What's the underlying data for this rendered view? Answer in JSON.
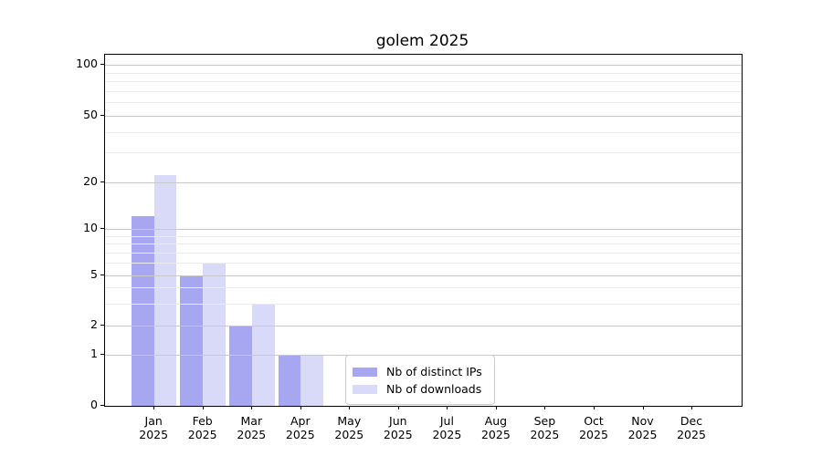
{
  "chart_data": {
    "type": "bar",
    "title": "golem 2025",
    "categories": [
      "Jan",
      "Feb",
      "Mar",
      "Apr",
      "May",
      "Jun",
      "Jul",
      "Aug",
      "Sep",
      "Oct",
      "Nov",
      "Dec"
    ],
    "x_year": "2025",
    "series": [
      {
        "name": "Nb of distinct IPs",
        "color": "#a6a6f1",
        "values": [
          12,
          5,
          2,
          1,
          0,
          0,
          0,
          0,
          0,
          0,
          0,
          0
        ]
      },
      {
        "name": "Nb of downloads",
        "color": "#d9d9f8",
        "values": [
          22,
          6,
          3,
          1,
          0,
          0,
          0,
          0,
          0,
          0,
          0,
          0
        ]
      }
    ],
    "ylabel": "",
    "xlabel": "",
    "yscale": "log-like",
    "y_ticks": [
      0,
      1,
      2,
      5,
      10,
      20,
      50,
      100
    ],
    "y_tick_labels": [
      "0",
      "1",
      "2",
      "5",
      "10",
      "20",
      "50",
      "100"
    ],
    "y_minor_ticks": [
      3,
      4,
      6,
      7,
      8,
      9,
      30,
      40,
      60,
      70,
      80,
      90
    ],
    "ylim": [
      0,
      115
    ],
    "grid": "on",
    "grid_over_bars": true,
    "legend_position": "lower center",
    "colors": {
      "bar_distinct_ips": "#a6a6f1",
      "bar_downloads": "#d9d9f8",
      "grid_major": "#c9c9c9",
      "grid_minor": "#ebebeb",
      "axis_spine": "#000000",
      "background": "#ffffff"
    }
  }
}
